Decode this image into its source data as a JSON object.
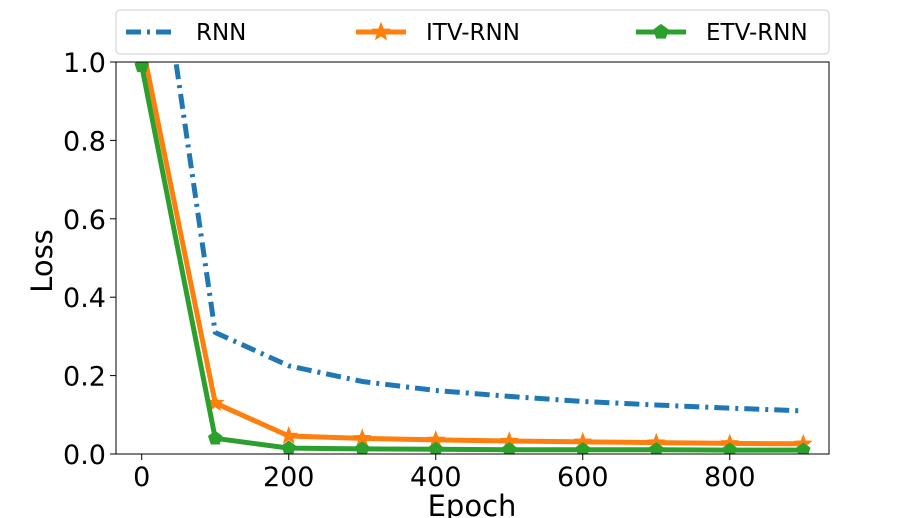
{
  "chart_data": {
    "type": "line",
    "title": "",
    "xlabel": "Epoch",
    "ylabel": "Loss",
    "xlim": [
      -35,
      935
    ],
    "ylim": [
      0,
      1.0
    ],
    "xticks": [
      0,
      200,
      400,
      600,
      800
    ],
    "yticks": [
      0.0,
      0.2,
      0.4,
      0.6,
      0.8,
      1.0
    ],
    "xtick_labels": [
      "0",
      "200",
      "400",
      "600",
      "800"
    ],
    "ytick_labels": [
      "0.0",
      "0.2",
      "0.4",
      "0.6",
      "0.8",
      "1.0"
    ],
    "grid": false,
    "legend_position": "top",
    "series": [
      {
        "name": "RNN",
        "color": "#1f77b4",
        "line_style": "dashdot",
        "marker": "none",
        "x": [
          0,
          100,
          200,
          300,
          400,
          500,
          600,
          700,
          800,
          900
        ],
        "y": [
          1.6,
          0.31,
          0.225,
          0.185,
          0.162,
          0.147,
          0.134,
          0.125,
          0.117,
          0.11
        ]
      },
      {
        "name": "ITV-RNN",
        "color": "#ff7f0e",
        "line_style": "solid",
        "marker": "star",
        "x": [
          0,
          100,
          200,
          300,
          400,
          500,
          600,
          700,
          800,
          900
        ],
        "y": [
          1.05,
          0.13,
          0.046,
          0.04,
          0.036,
          0.033,
          0.031,
          0.029,
          0.027,
          0.026
        ]
      },
      {
        "name": "ETV-RNN",
        "color": "#2ca02c",
        "line_style": "solid",
        "marker": "pentagon",
        "x": [
          0,
          100,
          200,
          300,
          400,
          500,
          600,
          700,
          800,
          900
        ],
        "y": [
          0.99,
          0.04,
          0.015,
          0.013,
          0.012,
          0.011,
          0.011,
          0.011,
          0.01,
          0.01
        ]
      }
    ]
  }
}
